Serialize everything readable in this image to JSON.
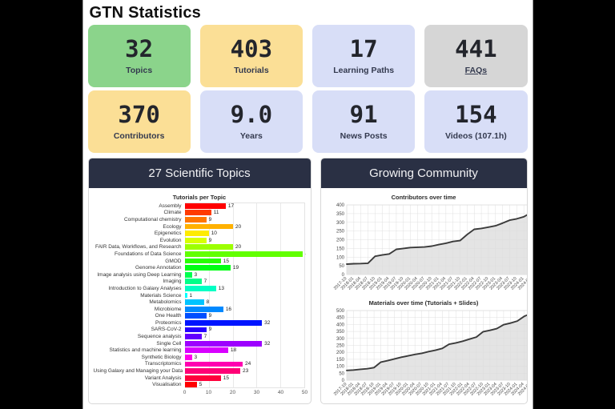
{
  "page": {
    "title": "GTN Statistics"
  },
  "stats": [
    {
      "value": "32",
      "label": "Topics",
      "bg": "#8bd48b"
    },
    {
      "value": "403",
      "label": "Tutorials",
      "bg": "#fbdf96"
    },
    {
      "value": "17",
      "label": "Learning Paths",
      "bg": "#d8def7"
    },
    {
      "value": "441",
      "label": "FAQs",
      "bg": "#d6d6d6"
    },
    {
      "value": "370",
      "label": "Contributors",
      "bg": "#fbdf96"
    },
    {
      "value": "9.0",
      "label": "Years",
      "bg": "#d8def7"
    },
    {
      "value": "91",
      "label": "News Posts",
      "bg": "#d8def7"
    },
    {
      "value": "154",
      "label": "Videos (107.1h)",
      "bg": "#d8def7"
    }
  ],
  "panels": {
    "left_title": "27 Scientific Topics",
    "right_title": "Growing Community"
  },
  "colors": {
    "header_bg": "#2a3044",
    "line": "#3b3b3b",
    "area_fill": "#e4e4e4",
    "grid": "#dddddd"
  },
  "chart_data": [
    {
      "type": "bar",
      "orientation": "horizontal",
      "title": "Tutorials per Topic",
      "xlim": [
        0,
        50
      ],
      "xticks": [
        0,
        10,
        20,
        30,
        40,
        50
      ],
      "categories": [
        "Assembly",
        "Climate",
        "Computational chemistry",
        "Ecology",
        "Epigenetics",
        "Evolution",
        "FAIR Data, Workflows, and Research",
        "Foundations of Data Science",
        "GMOD",
        "Genome Annotation",
        "Image analysis using Deep Learning",
        "Imaging",
        "Introduction to Galaxy Analyses",
        "Materials Science",
        "Metabolomics",
        "Microbiome",
        "One Health",
        "Proteomics",
        "SARS-CoV-2",
        "Sequence analysis",
        "Single Cell",
        "Statistics and machine learning",
        "Synthetic Biology",
        "Transcriptomics",
        "Using Galaxy and Managing your Data",
        "Variant Analysis",
        "Visualisation"
      ],
      "values": [
        17,
        11,
        9,
        20,
        10,
        9,
        20,
        49,
        15,
        19,
        3,
        7,
        13,
        1,
        8,
        16,
        9,
        32,
        9,
        7,
        32,
        18,
        3,
        24,
        23,
        15,
        5
      ],
      "colors": [
        "#ff0000",
        "#ff3b00",
        "#ff7600",
        "#ffb100",
        "#ffeb00",
        "#d8ff00",
        "#9dff00",
        "#62ff00",
        "#27ff00",
        "#00ff14",
        "#00ff4f",
        "#00ff89",
        "#00ffc4",
        "#00ffff",
        "#00c4ff",
        "#0089ff",
        "#004fff",
        "#0014ff",
        "#2700ff",
        "#6200ff",
        "#9d00ff",
        "#d800ff",
        "#ff00eb",
        "#ff00b0",
        "#ff0076",
        "#ff003b",
        "#ff0000"
      ]
    },
    {
      "type": "line",
      "title": "Contributors over time",
      "ylim": [
        0,
        400
      ],
      "yticks": [
        0,
        50,
        100,
        150,
        200,
        250,
        300,
        350,
        400
      ],
      "x": [
        "2017-10",
        "2018-01",
        "2018-04",
        "2018-07",
        "2018-10",
        "2019-01",
        "2019-04",
        "2019-07",
        "2019-10",
        "2020-01",
        "2020-04",
        "2020-07",
        "2020-10",
        "2021-01",
        "2021-04",
        "2021-07",
        "2021-10",
        "2022-01",
        "2022-04",
        "2022-07",
        "2022-10",
        "2023-01",
        "2023-04",
        "2023-07",
        "2023-10",
        "2024-01",
        "2024-04"
      ],
      "values": [
        60,
        62,
        63,
        65,
        105,
        112,
        118,
        145,
        150,
        155,
        157,
        158,
        163,
        172,
        180,
        190,
        195,
        230,
        260,
        265,
        272,
        280,
        295,
        312,
        320,
        332,
        355
      ],
      "line_color": "#3b3b3b",
      "fill_color": "#e4e4e4",
      "grid": true,
      "legend": false
    },
    {
      "type": "line",
      "title": "Materials over time (Tutorials + Slides)",
      "ylim": [
        0,
        500
      ],
      "yticks": [
        0,
        50,
        100,
        150,
        200,
        250,
        300,
        350,
        400,
        450,
        500
      ],
      "x": [
        "2017-10",
        "2018-01",
        "2018-04",
        "2018-07",
        "2018-10",
        "2019-01",
        "2019-04",
        "2019-07",
        "2019-10",
        "2020-01",
        "2020-04",
        "2020-07",
        "2020-10",
        "2021-01",
        "2021-04",
        "2021-07",
        "2021-10",
        "2022-01",
        "2022-04",
        "2022-07",
        "2022-10",
        "2023-01",
        "2023-04",
        "2023-07",
        "2023-10",
        "2024-01",
        "2024-04",
        "2024-07"
      ],
      "values": [
        70,
        73,
        78,
        82,
        90,
        130,
        140,
        153,
        165,
        175,
        185,
        193,
        205,
        215,
        228,
        258,
        268,
        280,
        295,
        310,
        348,
        358,
        370,
        398,
        410,
        425,
        458,
        480
      ],
      "line_color": "#3b3b3b",
      "fill_color": "#e4e4e4",
      "grid": true,
      "legend": false
    }
  ]
}
